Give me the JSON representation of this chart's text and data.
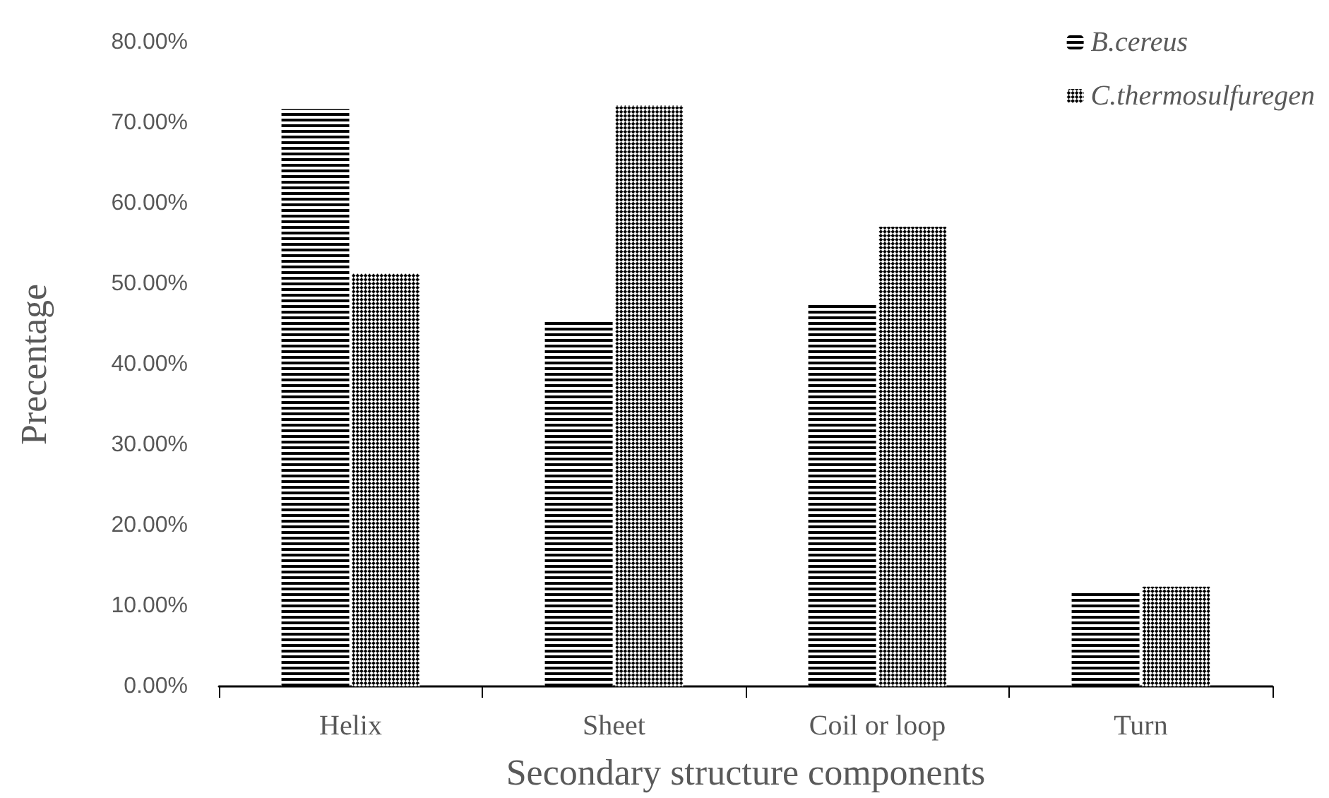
{
  "chart_data": {
    "type": "bar",
    "xlabel": "Secondary structure components",
    "ylabel": "Precentage",
    "categories": [
      "Helix",
      "Sheet",
      "Coil or loop",
      "Turn"
    ],
    "series": [
      {
        "name": "B.cereus",
        "color": "#000000",
        "values": [
          71.7,
          45.6,
          47.6,
          11.8
        ]
      },
      {
        "name": "C.thermosulfuregen",
        "color": "#000000",
        "values": [
          51.3,
          72.2,
          57.1,
          12.4
        ]
      }
    ],
    "ylim": [
      0,
      80
    ],
    "yticks": [
      {
        "value": 0,
        "label": "0.00%"
      },
      {
        "value": 10,
        "label": "10.00%"
      },
      {
        "value": 20,
        "label": "20.00%"
      },
      {
        "value": 30,
        "label": "30.00%"
      },
      {
        "value": 40,
        "label": "40.00%"
      },
      {
        "value": 50,
        "label": "50.00%"
      },
      {
        "value": 60,
        "label": "60.00%"
      },
      {
        "value": 70,
        "label": "70.00%"
      },
      {
        "value": 80,
        "label": "80.00%"
      }
    ],
    "grid": false,
    "legend": "top right"
  }
}
